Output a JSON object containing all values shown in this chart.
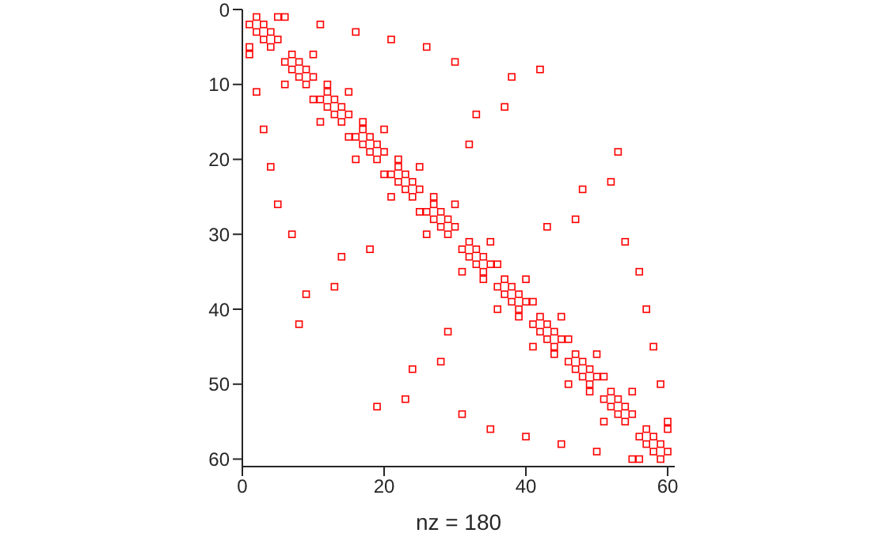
{
  "chart_data": {
    "type": "scatter",
    "xlabel": "nz = 180",
    "xlim": [
      0,
      61
    ],
    "xticks": [
      0,
      20,
      40,
      60
    ],
    "ylim": [
      61,
      0
    ],
    "yticks": [
      0,
      10,
      20,
      30,
      40,
      50,
      60
    ],
    "grid": false,
    "legend": false,
    "marker": "square",
    "series": [
      {
        "color": "#ff0000",
        "x": [
          2,
          5,
          6,
          1,
          3,
          11,
          2,
          4,
          16,
          3,
          5,
          21,
          1,
          4,
          26,
          1,
          7,
          10,
          6,
          8,
          30,
          7,
          9,
          42,
          8,
          10,
          38,
          6,
          9,
          12,
          2,
          12,
          15,
          10,
          11,
          13,
          12,
          14,
          37,
          13,
          15,
          33,
          11,
          14,
          17,
          3,
          17,
          20,
          15,
          16,
          18,
          17,
          19,
          32,
          18,
          20,
          53,
          16,
          19,
          22,
          4,
          22,
          25,
          20,
          21,
          23,
          22,
          24,
          52,
          23,
          25,
          48,
          21,
          24,
          27,
          5,
          27,
          30,
          25,
          26,
          28,
          27,
          29,
          47,
          28,
          30,
          43,
          7,
          26,
          29,
          32,
          35,
          54,
          18,
          31,
          33,
          14,
          32,
          34,
          33,
          35,
          36,
          31,
          34,
          56,
          34,
          37,
          40,
          13,
          36,
          38,
          9,
          37,
          39,
          38,
          40,
          41,
          36,
          39,
          57,
          39,
          42,
          45,
          8,
          41,
          43,
          29,
          42,
          44,
          43,
          45,
          46,
          41,
          44,
          58,
          44,
          47,
          50,
          28,
          46,
          48,
          24,
          47,
          49,
          48,
          50,
          51,
          46,
          49,
          59,
          49,
          52,
          55,
          23,
          51,
          53,
          19,
          52,
          54,
          31,
          53,
          55,
          51,
          54,
          60,
          35,
          57,
          60,
          40,
          56,
          58,
          45,
          57,
          59,
          50,
          58,
          60,
          55,
          56,
          59
        ],
        "values": [
          1,
          1,
          1,
          2,
          2,
          2,
          3,
          3,
          3,
          4,
          4,
          4,
          5,
          5,
          5,
          6,
          6,
          6,
          7,
          7,
          7,
          8,
          8,
          8,
          9,
          9,
          9,
          10,
          10,
          10,
          11,
          11,
          11,
          12,
          12,
          12,
          13,
          13,
          13,
          14,
          14,
          14,
          15,
          15,
          15,
          16,
          16,
          16,
          17,
          17,
          17,
          18,
          18,
          18,
          19,
          19,
          19,
          20,
          20,
          20,
          21,
          21,
          21,
          22,
          22,
          22,
          23,
          23,
          23,
          24,
          24,
          24,
          25,
          25,
          25,
          26,
          26,
          26,
          27,
          27,
          27,
          28,
          28,
          28,
          29,
          29,
          29,
          30,
          30,
          30,
          31,
          31,
          31,
          32,
          32,
          32,
          33,
          33,
          33,
          34,
          34,
          34,
          35,
          35,
          35,
          36,
          36,
          36,
          37,
          37,
          37,
          38,
          38,
          38,
          39,
          39,
          39,
          40,
          40,
          40,
          41,
          41,
          41,
          42,
          42,
          42,
          43,
          43,
          43,
          44,
          44,
          44,
          45,
          45,
          45,
          46,
          46,
          46,
          47,
          47,
          47,
          48,
          48,
          48,
          49,
          49,
          49,
          50,
          50,
          50,
          51,
          51,
          51,
          52,
          52,
          52,
          53,
          53,
          53,
          54,
          54,
          54,
          55,
          55,
          55,
          56,
          56,
          56,
          57,
          57,
          57,
          58,
          58,
          58,
          59,
          59,
          59,
          60,
          60,
          60
        ]
      }
    ]
  }
}
